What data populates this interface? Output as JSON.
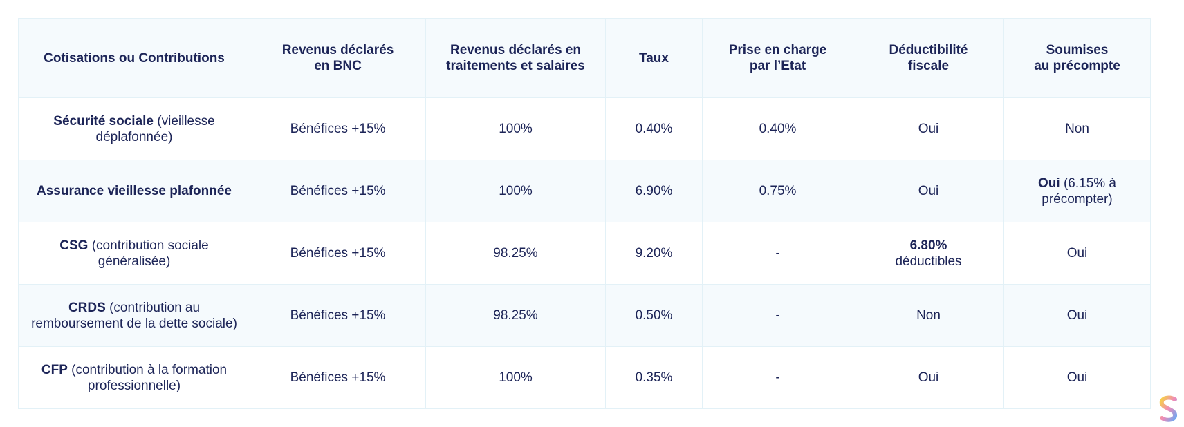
{
  "headers": [
    [
      "Cotisations ou Contributions"
    ],
    [
      "Revenus déclarés",
      "en BNC"
    ],
    [
      "Revenus déclarés en",
      "traitements et salaires"
    ],
    [
      "Taux"
    ],
    [
      "Prise en charge",
      "par l’Etat"
    ],
    [
      "Déductibilité",
      "fiscale"
    ],
    [
      "Soumises",
      "au précompte"
    ]
  ],
  "rows": [
    {
      "name_bold": "Sécurité sociale",
      "name_rest": " (vieillesse déplafonnée)",
      "bnc": "Bénéfices +15%",
      "salaires": "100%",
      "taux": "0.40%",
      "etat": "0.40%",
      "deductibilite": "Oui",
      "deductibilite_rest": "",
      "precompte": "Non",
      "precompte_rest": ""
    },
    {
      "name_bold": "Assurance vieillesse plafonnée",
      "name_rest": "",
      "bnc": "Bénéfices +15%",
      "salaires": "100%",
      "taux": "6.90%",
      "etat": "0.75%",
      "deductibilite": "Oui",
      "deductibilite_rest": "",
      "precompte": "Oui",
      "precompte_rest": " (6.15% à précompter)"
    },
    {
      "name_bold": "CSG",
      "name_rest": " (contribution sociale généralisée)",
      "bnc": "Bénéfices +15%",
      "salaires": "98.25%",
      "taux": "9.20%",
      "etat": "-",
      "deductibilite": "6.80%",
      "deductibilite_rest": "déductibles",
      "precompte": "Oui",
      "precompte_rest": ""
    },
    {
      "name_bold": "CRDS",
      "name_rest": " (contribution au remboursement de la dette sociale)",
      "bnc": "Bénéfices +15%",
      "salaires": "98.25%",
      "taux": "0.50%",
      "etat": "-",
      "deductibilite": "Non",
      "deductibilite_rest": "",
      "precompte": "Oui",
      "precompte_rest": ""
    },
    {
      "name_bold": "CFP",
      "name_rest": " (contribution à la formation professionnelle)",
      "bnc": "Bénéfices +15%",
      "salaires": "100%",
      "taux": "0.35%",
      "etat": "-",
      "deductibilite": "Oui",
      "deductibilite_rest": "",
      "precompte": "Oui",
      "precompte_rest": ""
    }
  ],
  "colors": {
    "text": "#1c2457",
    "header_bg": "#f5fafd",
    "border": "#e3f1f7",
    "logo_gradient": [
      "#f7d046",
      "#f08bb7",
      "#6fa8f2"
    ]
  },
  "logo": {
    "icon": "s-logo-icon"
  }
}
